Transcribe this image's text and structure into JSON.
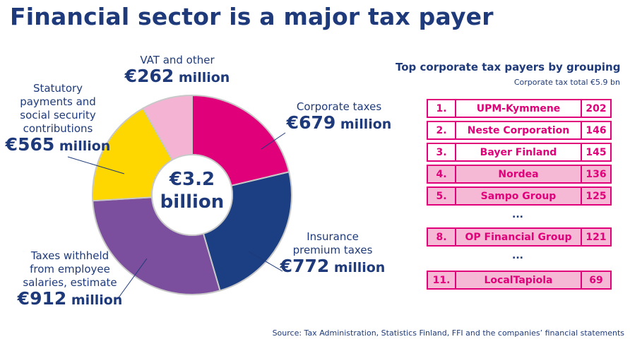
{
  "title": "Financial sector is a major tax payer",
  "chart_data": [
    {
      "type": "pie",
      "center_label": {
        "line1": "€3.2",
        "line2": "billion"
      },
      "categories": [
        "Corporate taxes",
        "Insurance premium taxes",
        "Taxes withheld from employee salaries, estimate",
        "Statutory payments and social security contributions",
        "VAT and other"
      ],
      "values": [
        679,
        772,
        912,
        565,
        262
      ],
      "colors": [
        "#e0007a",
        "#1b3f82",
        "#7b4f9d",
        "#ffd700",
        "#f4b3d3"
      ],
      "labels": [
        {
          "text_lines": [
            "Corporate taxes"
          ],
          "euro": "€",
          "amount": "679",
          "unit": " million"
        },
        {
          "text_lines": [
            "Insurance",
            "premium taxes"
          ],
          "euro": "€",
          "amount": "772",
          "unit": " million"
        },
        {
          "text_lines": [
            "Taxes withheld",
            "from employee",
            "salaries, estimate"
          ],
          "euro": "€",
          "amount": "912",
          "unit": " million"
        },
        {
          "text_lines": [
            "Statutory",
            "payments and",
            "social security",
            "contributions"
          ],
          "euro": "€",
          "amount": "565",
          "unit": " million"
        },
        {
          "text_lines": [
            "VAT and other"
          ],
          "euro": "€",
          "amount": "262",
          "unit": " million"
        }
      ]
    },
    {
      "type": "table",
      "title": "Top corporate tax payers by grouping",
      "subtitle": "Corporate tax total €5.9 bn",
      "rows": [
        {
          "rank": "1.",
          "name": "UPM-Kymmene",
          "value": "202",
          "highlight": false
        },
        {
          "rank": "2.",
          "name": "Neste Corporation",
          "value": "146",
          "highlight": false
        },
        {
          "rank": "3.",
          "name": "Bayer Finland",
          "value": "145",
          "highlight": false
        },
        {
          "rank": "4.",
          "name": "Nordea",
          "value": "136",
          "highlight": true
        },
        {
          "rank": "5.",
          "name": "Sampo Group",
          "value": "125",
          "highlight": true
        },
        {
          "rank": "8.",
          "name": "OP Financial Group",
          "value": "121",
          "highlight": true
        },
        {
          "rank": "11.",
          "name": "LocalTapiola",
          "value": "69",
          "highlight": true
        }
      ],
      "ellipsis": "..."
    }
  ],
  "source": "Source: Tax Administration, Statistics Finland, FFI and the companies’ financial statements"
}
